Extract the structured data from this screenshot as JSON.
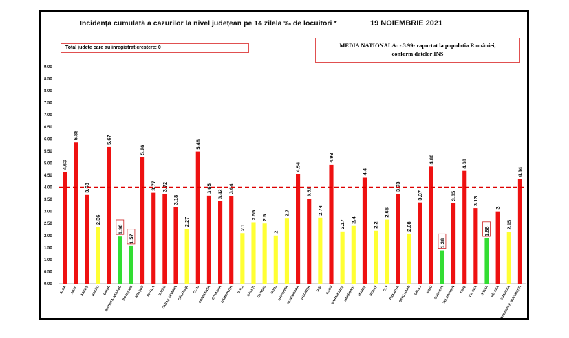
{
  "header": {
    "title": "Incidența cumulată a cazurilor la nivel județean pe 14 zilela ‰ de locuitori *",
    "date": "19 NOIEMBRIE 2021"
  },
  "info": {
    "left_box": "Total judete care au inregistrat crestere: 0",
    "right_box_line1": "MEDIA NATIONALA: - 3.99- raportat la populatia României,",
    "right_box_line2": "conform datelor INS"
  },
  "colors": {
    "red": "#ee1111",
    "yellow": "#ffff33",
    "green": "#33dd33",
    "threshold_line": "#dd0000"
  },
  "chart_data": {
    "type": "bar",
    "ylim": [
      0,
      9
    ],
    "yticks": [
      "0.00",
      "0.50",
      "1.00",
      "1.50",
      "2.00",
      "2.50",
      "3.00",
      "3.50",
      "4.00",
      "4.50",
      "5.00",
      "5.50",
      "6.00",
      "6.50",
      "7.00",
      "7.50",
      "8.00",
      "8.50",
      "9.00"
    ],
    "threshold": 4.0,
    "categories": [
      "ALBA",
      "ARAD",
      "ARGEȘ",
      "BACĂU",
      "BIHOR",
      "BISTRIȚA-NĂSĂUD",
      "BOTOȘANI",
      "BRAȘOV",
      "BRĂILA",
      "BUZĂU",
      "CARAȘ-SEVERIN",
      "CĂLĂRAȘI",
      "CLUJ",
      "CONSTANȚA",
      "COVASNA",
      "DÂMBOVIȚA",
      "DOLJ",
      "GALAȚI",
      "GIURGIU",
      "GORJ",
      "HARGHITA",
      "HUNEDOARA",
      "IALOMIȚA",
      "IAȘI",
      "ILFOV",
      "MARAMUREȘ",
      "MEHEDINȚI",
      "MUREȘ",
      "NEAMȚ",
      "OLT",
      "PRAHOVA",
      "SATU MARE",
      "SĂLAJ",
      "SIBIU",
      "SUCEAVA",
      "TELEORMAN",
      "TIMIȘ",
      "TULCEA",
      "VASLUI",
      "VÂLCEA",
      "VRANCEA",
      "MUNICIPIUL BUCUREȘTI"
    ],
    "values": [
      4.63,
      5.86,
      3.68,
      2.36,
      5.67,
      1.96,
      1.57,
      5.26,
      3.77,
      3.72,
      3.18,
      2.27,
      5.48,
      3.65,
      3.42,
      3.64,
      2.1,
      2.55,
      2.5,
      2,
      2.7,
      4.54,
      3.51,
      2.74,
      4.93,
      2.17,
      2.4,
      4.4,
      2.2,
      2.66,
      3.73,
      2.08,
      3.37,
      4.86,
      1.38,
      3.35,
      4.68,
      3.13,
      1.88,
      3,
      2.15,
      4.34
    ],
    "labels": [
      "4.63",
      "5.86",
      "3.68",
      "2.36",
      "5.67",
      "1.96",
      "1.57",
      "5.26",
      "3.77",
      "3.72",
      "3.18",
      "2.27",
      "5.48",
      "3.65",
      "3.42",
      "3.64",
      "2.1",
      "2.55",
      "2.5",
      "2",
      "2.7",
      "4.54",
      "3.51",
      "2.74",
      "4.93",
      "2.17",
      "2.4",
      "4.4",
      "2.2",
      "2.66",
      "3.73",
      "2.08",
      "3.37",
      "4.86",
      "1.38",
      "3.35",
      "4.68",
      "3.13",
      "1.88",
      "3",
      "2.15",
      "4.34"
    ],
    "colors": [
      "red",
      "red",
      "red",
      "yellow",
      "red",
      "green",
      "green",
      "red",
      "red",
      "red",
      "red",
      "yellow",
      "red",
      "red",
      "red",
      "red",
      "yellow",
      "yellow",
      "yellow",
      "yellow",
      "yellow",
      "red",
      "red",
      "yellow",
      "red",
      "yellow",
      "yellow",
      "red",
      "yellow",
      "yellow",
      "red",
      "yellow",
      "red",
      "red",
      "green",
      "red",
      "red",
      "red",
      "green",
      "red",
      "yellow",
      "red"
    ]
  }
}
